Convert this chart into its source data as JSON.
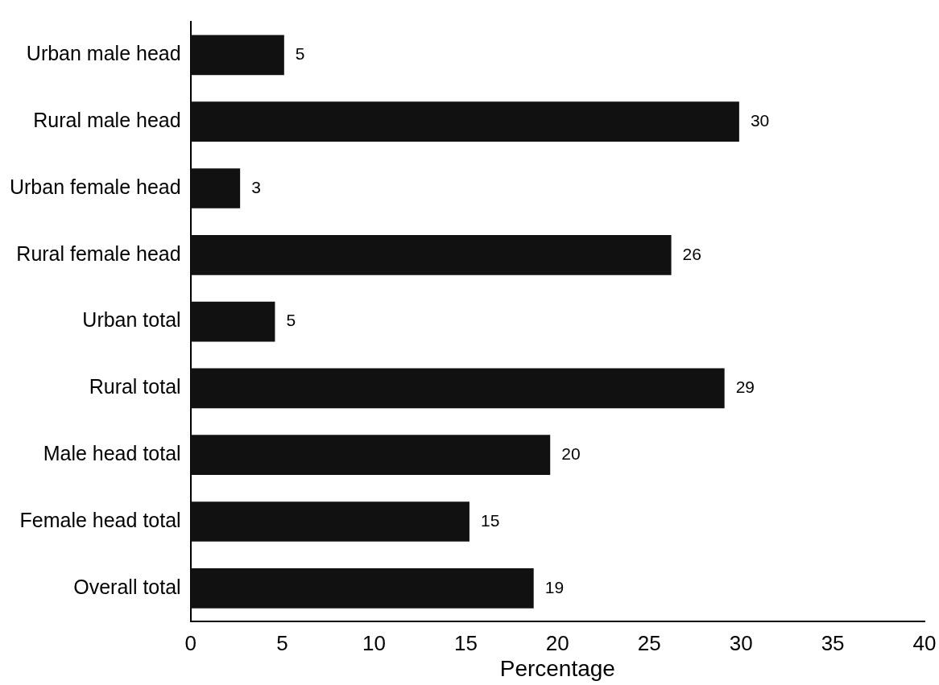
{
  "chart_data": {
    "type": "bar",
    "orientation": "horizontal",
    "xlabel": "Percentage",
    "categories": [
      "Urban male head",
      "Rural male head",
      "Urban female head",
      "Rural female head",
      "Urban total",
      "Rural total",
      "Male head total",
      "Female head total",
      "Overall total"
    ],
    "values": [
      5.1,
      29.9,
      2.7,
      26.2,
      4.6,
      29.1,
      19.6,
      15.2,
      18.7
    ],
    "value_labels": [
      "5",
      "30",
      "3",
      "26",
      "5",
      "29",
      "20",
      "15",
      "19"
    ],
    "color": "#111111",
    "xlim": [
      0,
      40
    ],
    "xticks": [
      0,
      5,
      10,
      15,
      20,
      25,
      30,
      35,
      40
    ],
    "grid": false,
    "legend": false
  }
}
